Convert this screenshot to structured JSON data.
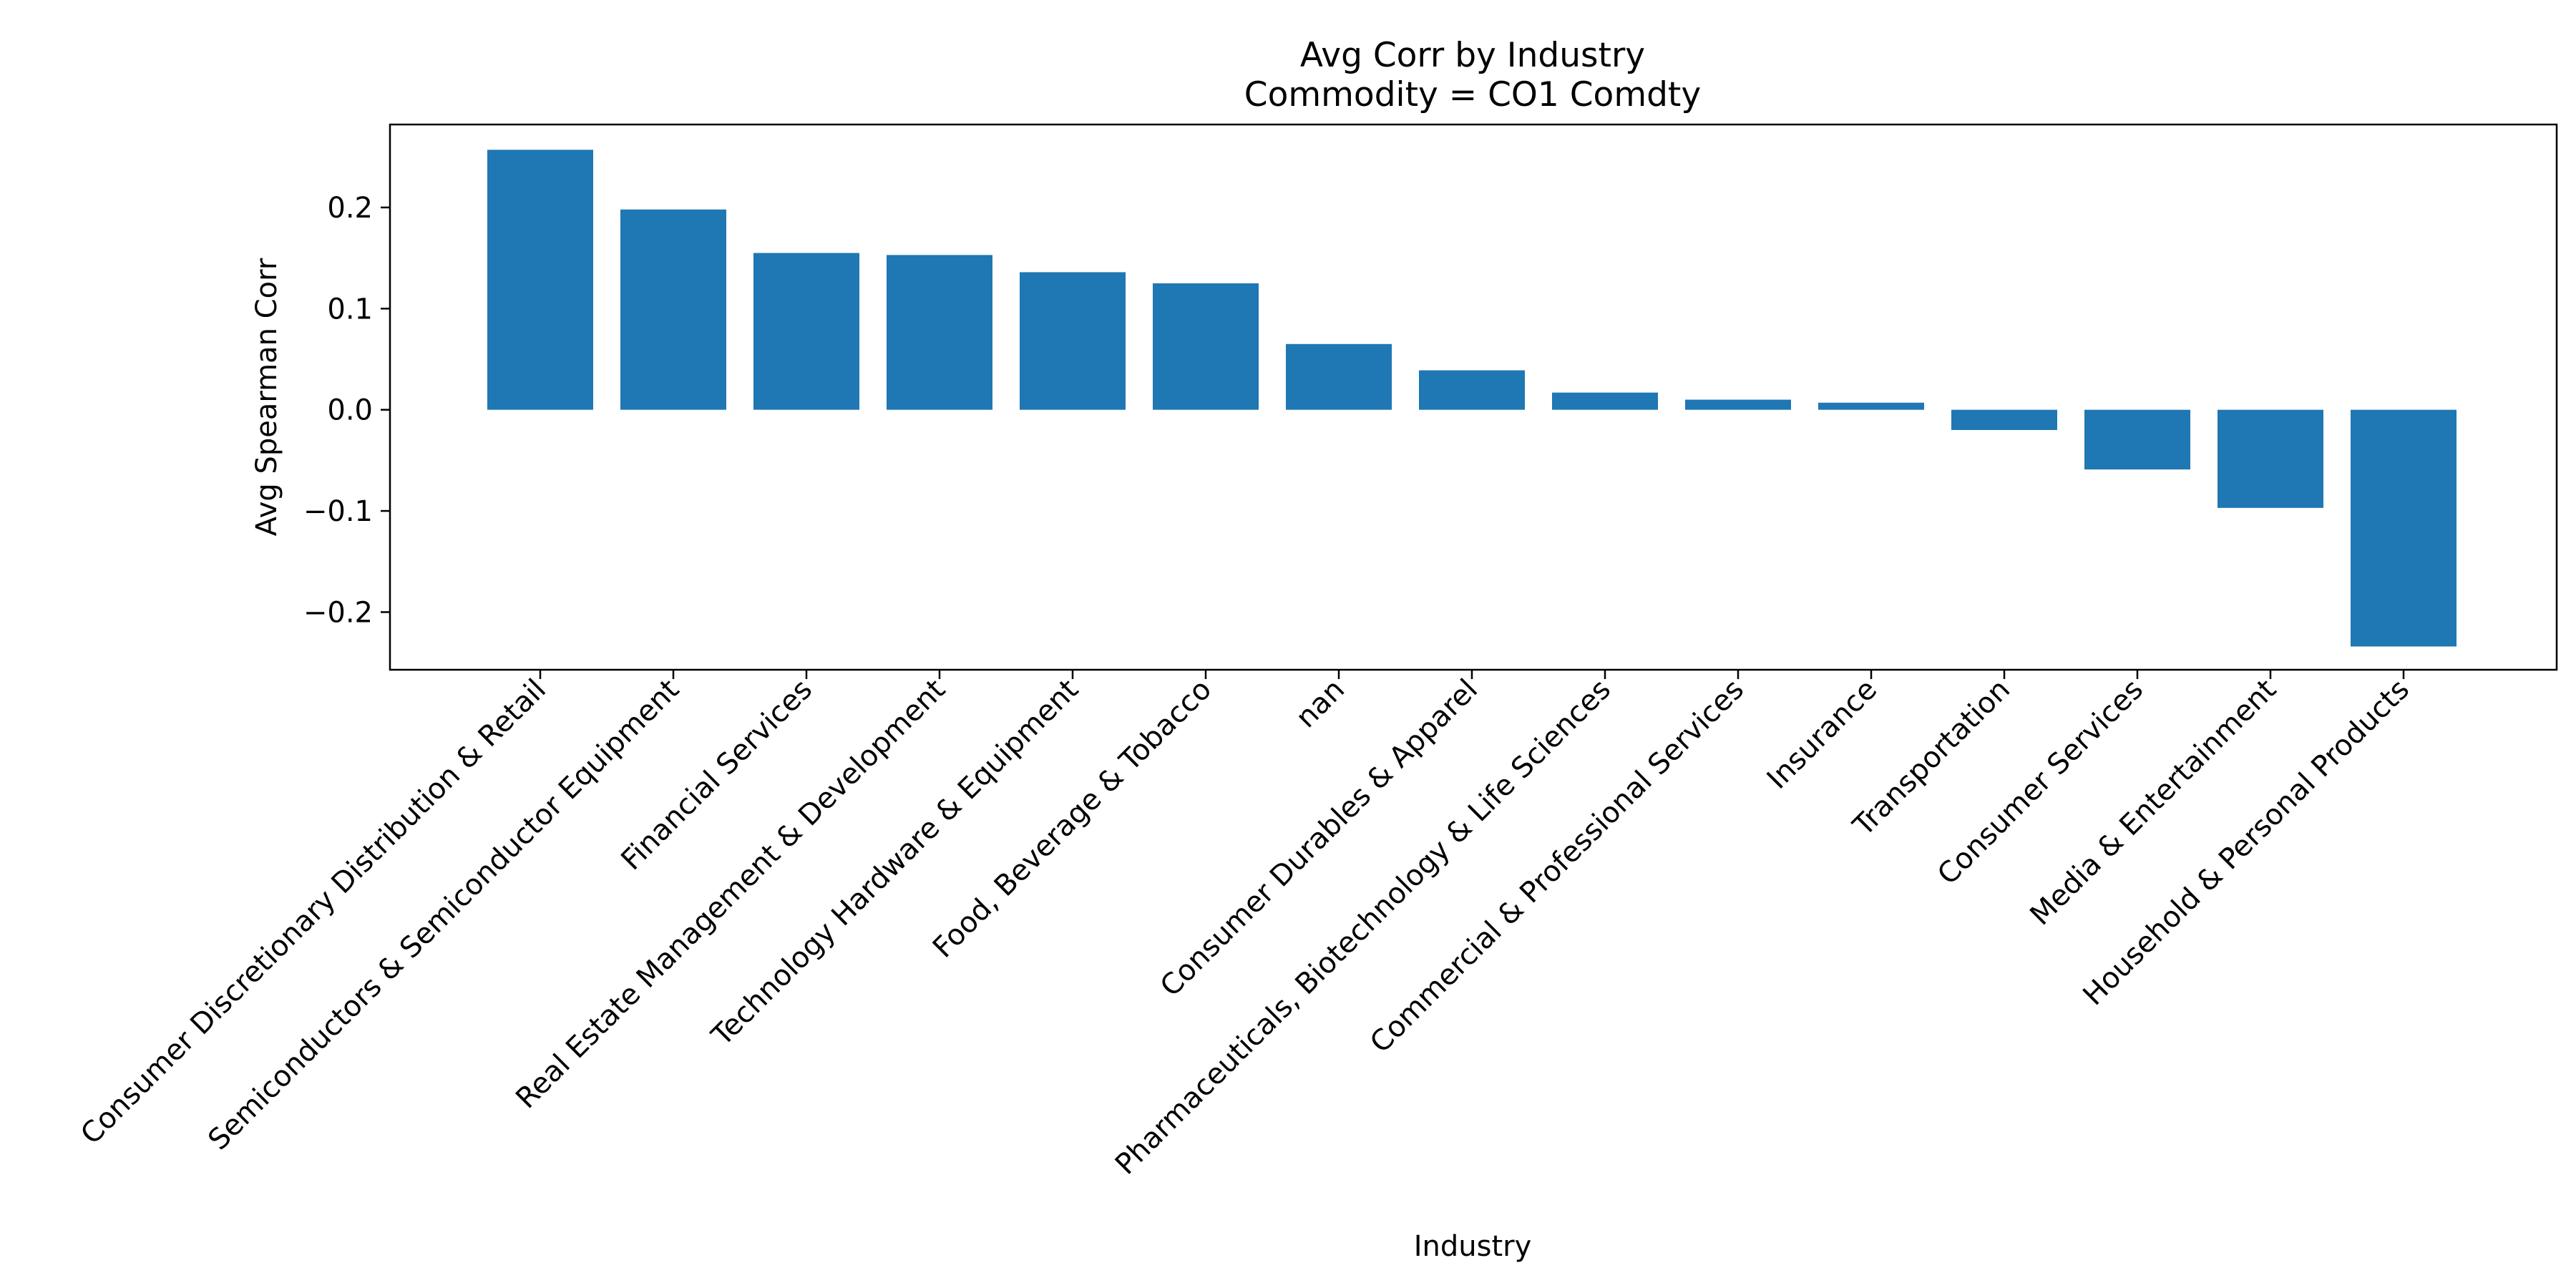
{
  "chart_data": {
    "type": "bar",
    "title": "Avg Corr by Industry",
    "subtitle": "Commodity = CO1 Comdty",
    "xlabel": "Industry",
    "ylabel": "Avg Spearman Corr",
    "ylim": [
      -0.257,
      0.282
    ],
    "yticks": [
      -0.2,
      -0.1,
      0.0,
      0.1,
      0.2
    ],
    "ytick_labels": [
      "−0.2",
      "−0.1",
      "0.0",
      "0.1",
      "0.2"
    ],
    "grid": false,
    "legend": "none",
    "bar_color": "#1f77b4",
    "categories": [
      "Consumer Discretionary Distribution & Retail",
      "Semiconductors & Semiconductor Equipment",
      "Financial Services",
      "Real Estate Management & Development",
      "Technology Hardware & Equipment",
      "Food, Beverage & Tobacco",
      "nan",
      "Consumer Durables & Apparel",
      "Pharmaceuticals, Biotechnology & Life Sciences",
      "Commercial & Professional Services",
      "Insurance",
      "Transportation",
      "Consumer Services",
      "Media & Entertainment",
      "Household & Personal Products"
    ],
    "values": [
      0.257,
      0.198,
      0.155,
      0.153,
      0.136,
      0.125,
      0.065,
      0.039,
      0.017,
      0.01,
      0.007,
      -0.02,
      -0.059,
      -0.097,
      -0.234
    ]
  }
}
